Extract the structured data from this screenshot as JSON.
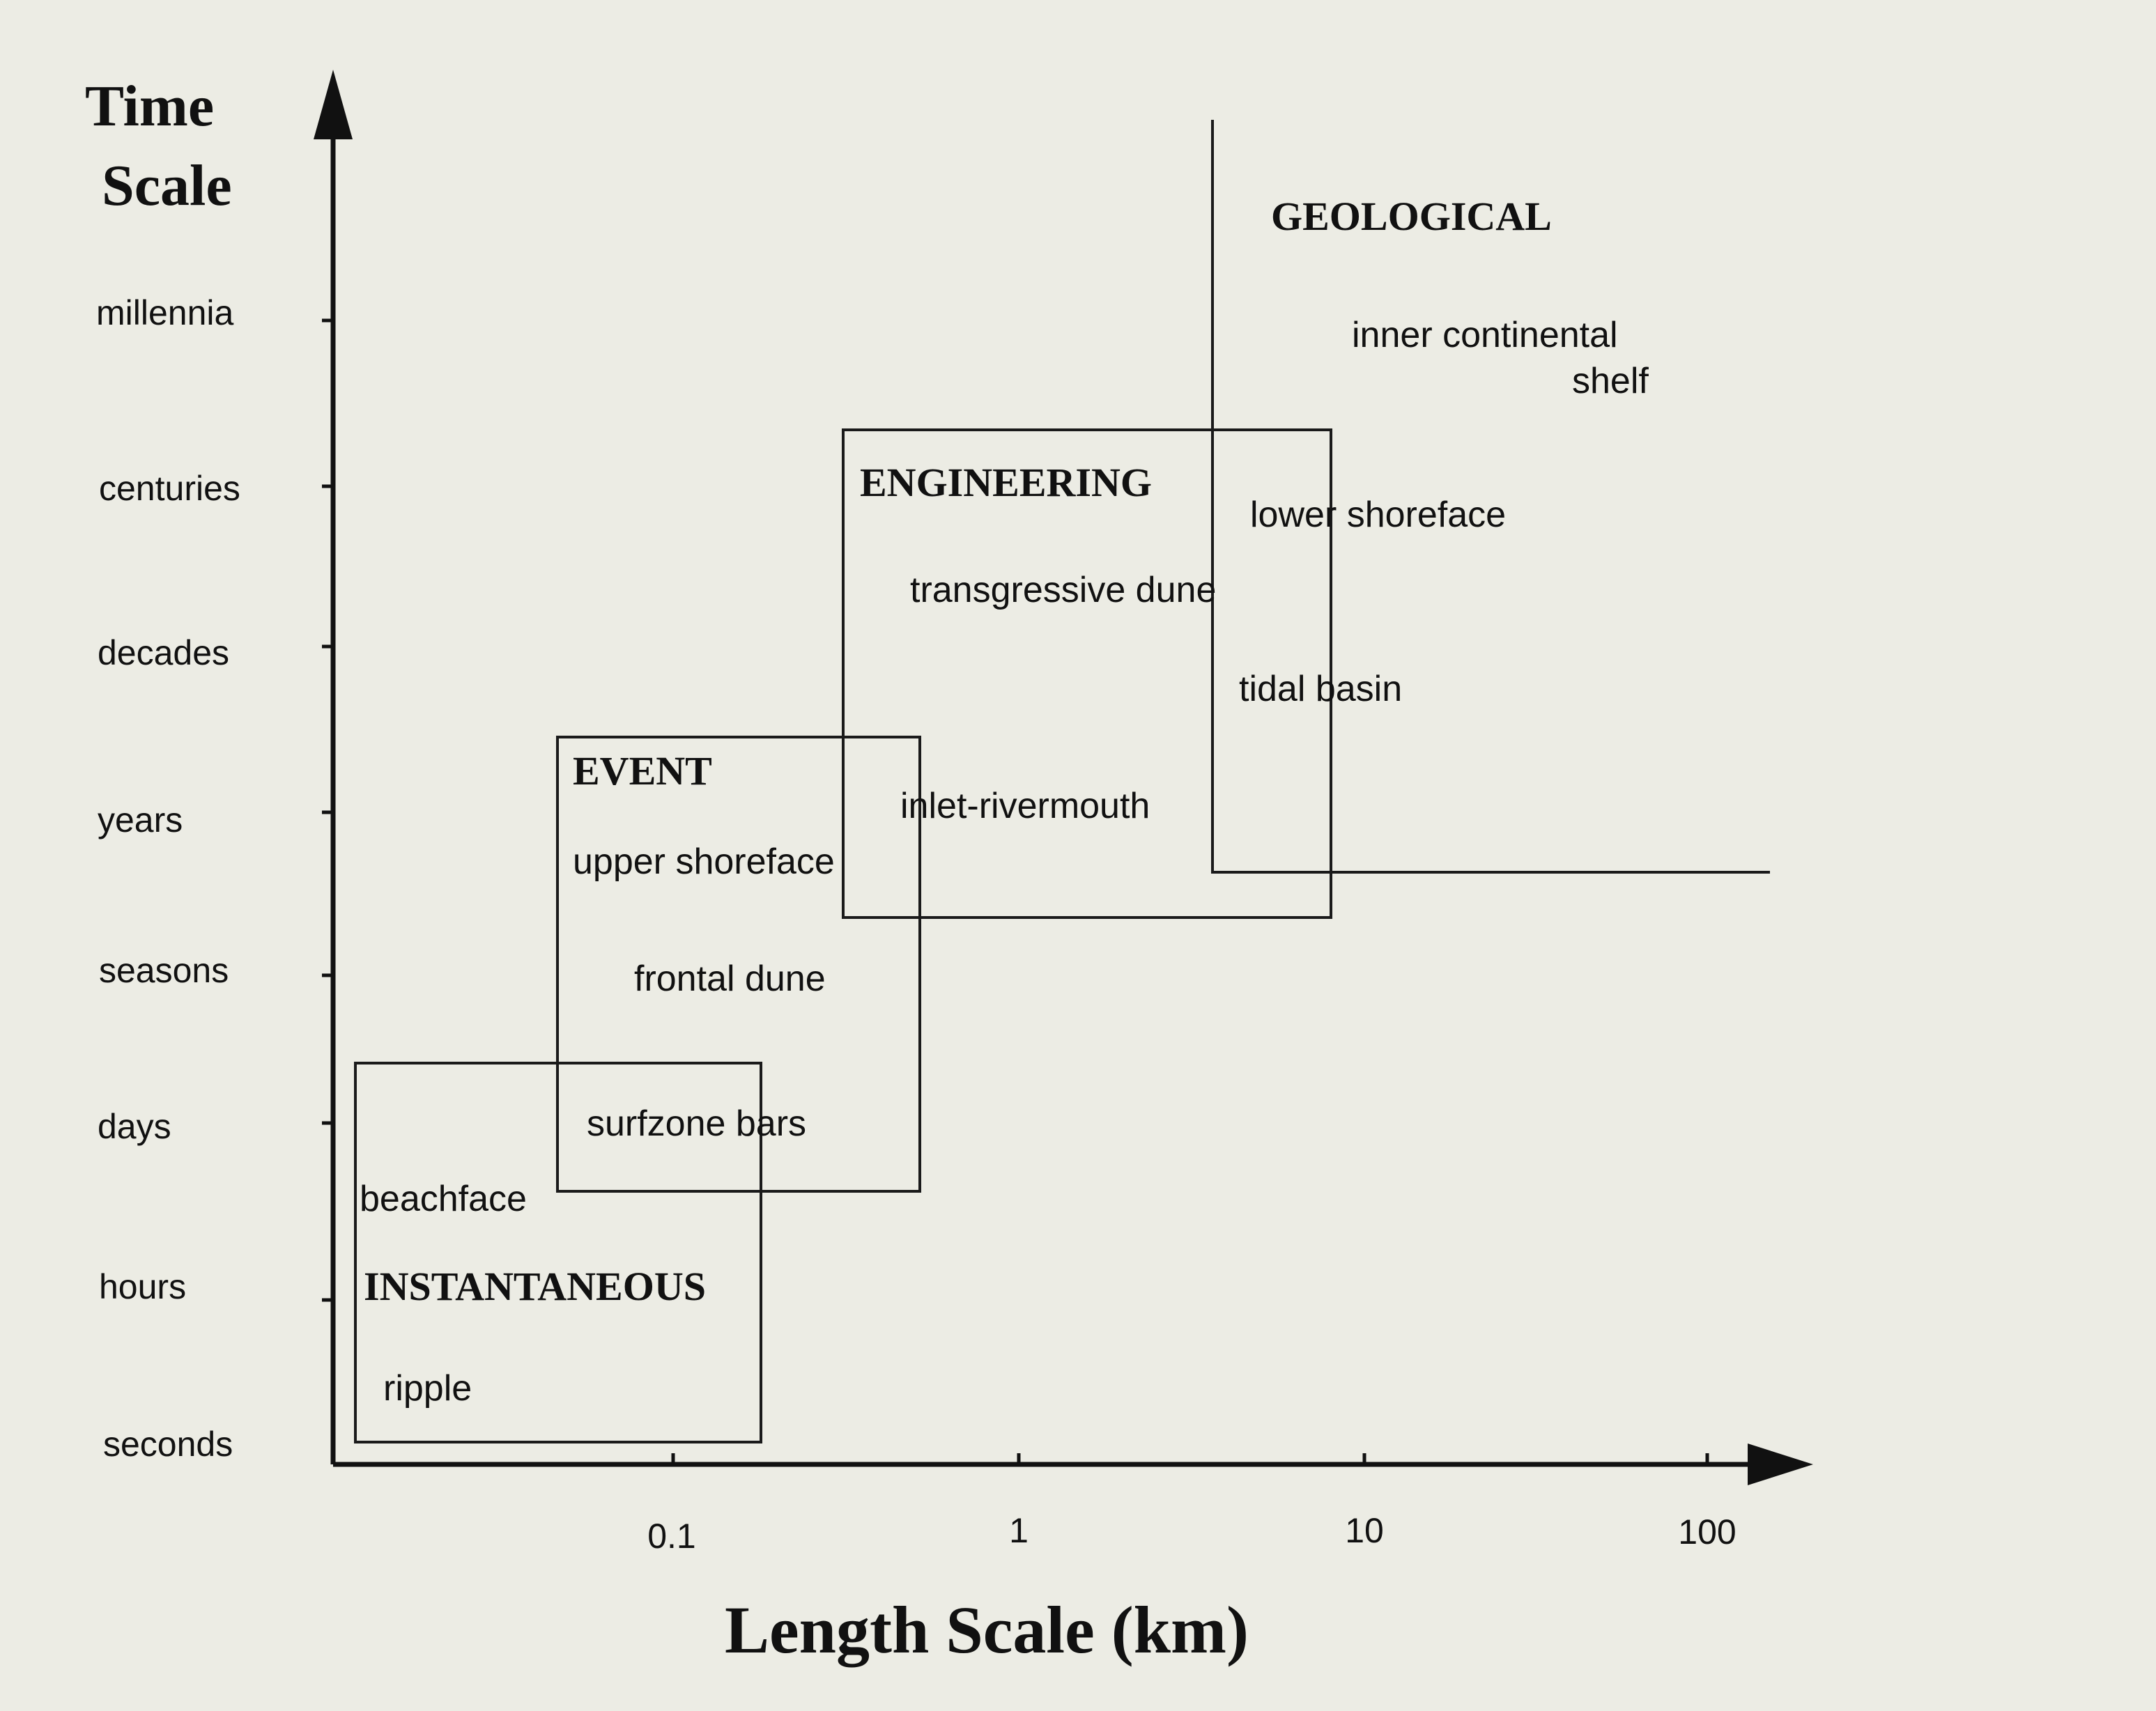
{
  "axes": {
    "y_title_line1": "Time",
    "y_title_line2": "Scale",
    "x_title": "Length Scale (km)",
    "y_ticks": [
      "millennia",
      "centuries",
      "decades",
      "years",
      "seasons",
      "days",
      "hours",
      "seconds"
    ],
    "x_ticks": [
      "0.1",
      "1",
      "10",
      "100"
    ]
  },
  "categories": {
    "geological": "GEOLOGICAL",
    "engineering": "ENGINEERING",
    "event": "EVENT",
    "instantaneous": "INSTANTANEOUS"
  },
  "features": {
    "inner_continental_1": "inner continental",
    "inner_continental_2": "shelf",
    "lower_shoreface": "lower shoreface",
    "transgressive_dune": "transgressive dune",
    "tidal_basin": "tidal basin",
    "inlet_rivermouth": "inlet-rivermouth",
    "upper_shoreface": "upper shoreface",
    "frontal_dune": "frontal dune",
    "surfzone_bars": "surfzone bars",
    "beachface": "beachface",
    "ripple": "ripple"
  }
}
